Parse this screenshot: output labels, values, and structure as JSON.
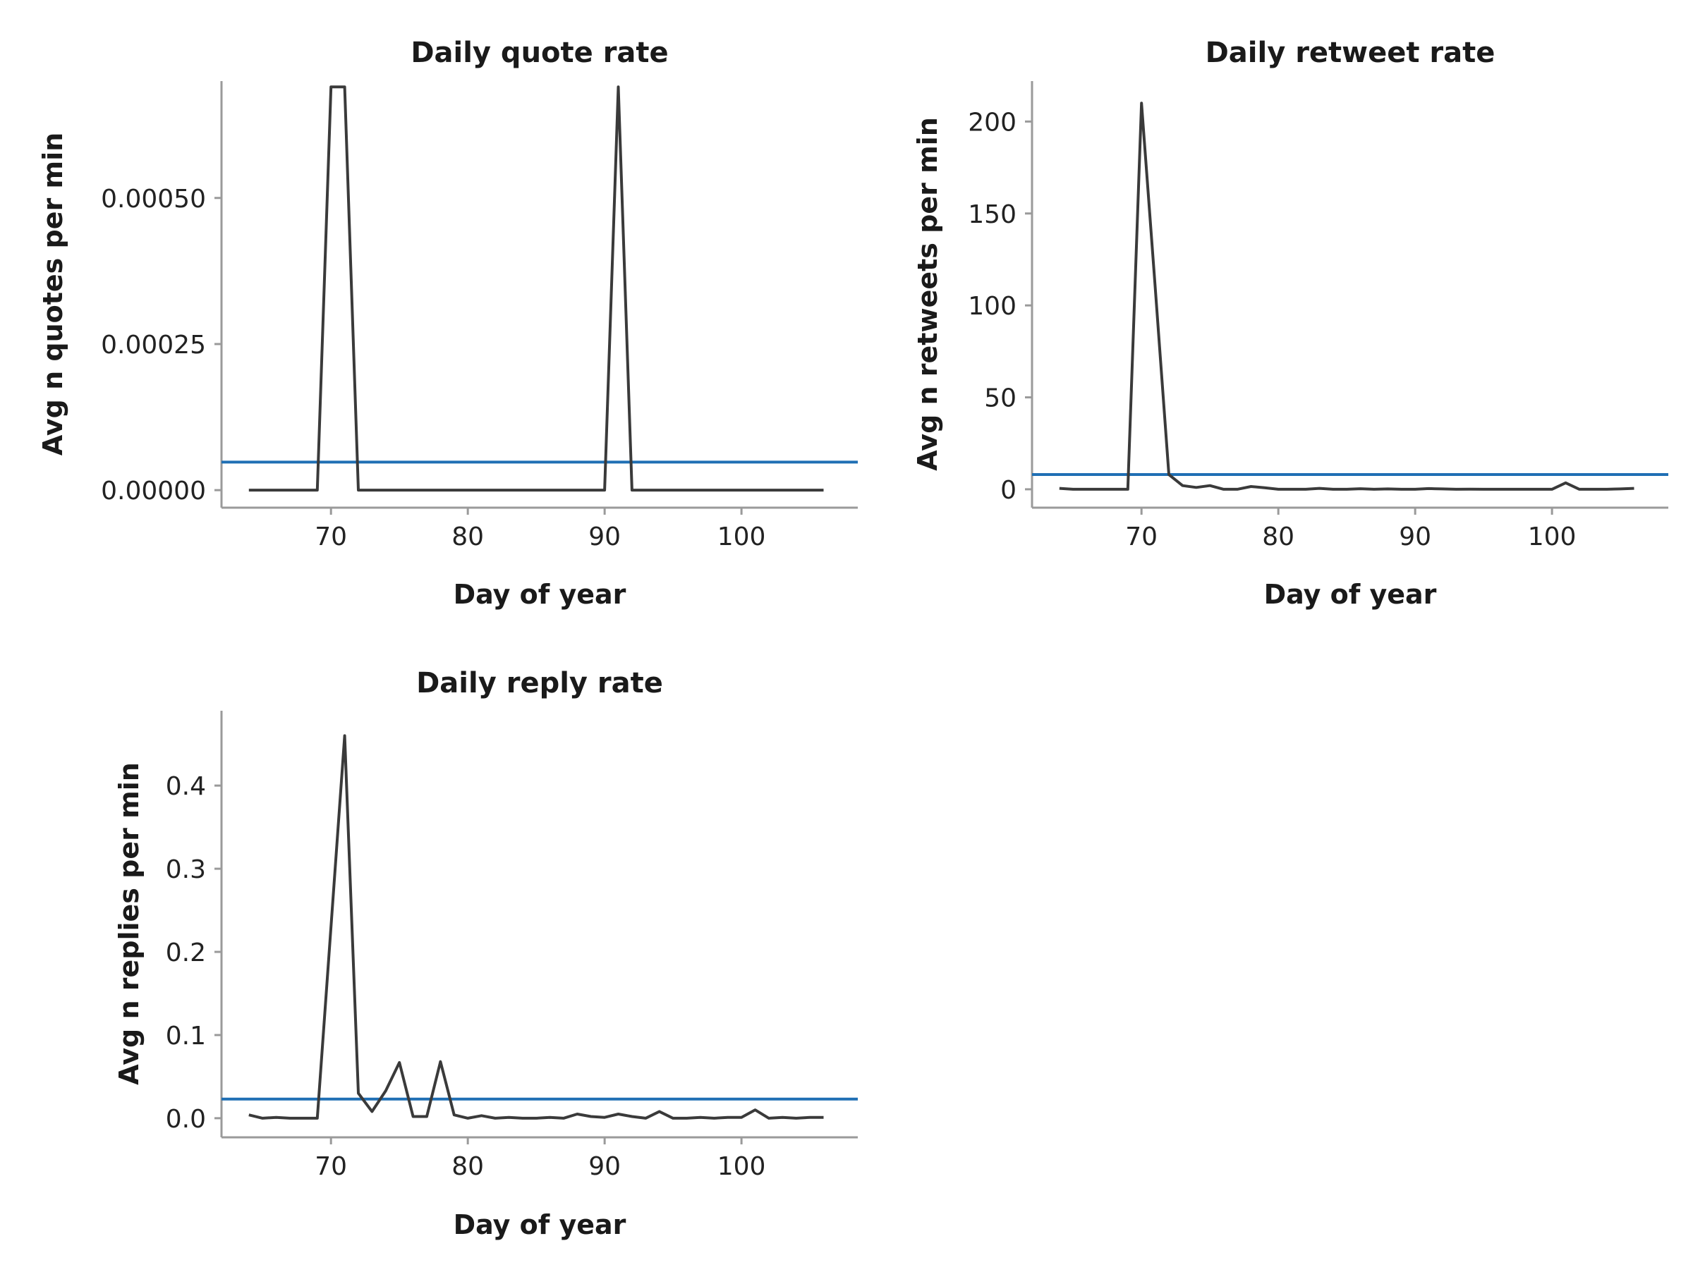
{
  "colors": {
    "series_line": "#3a3a3a",
    "reference_line": "#1f6fb4",
    "axis": "#9a9a9a"
  },
  "chart_data": [
    {
      "id": "quote",
      "type": "line",
      "title": "Daily quote rate",
      "xlabel": "Day of year",
      "ylabel": "Avg n quotes per min",
      "xlim": [
        62,
        108.5
      ],
      "ylim": [
        -3e-05,
        0.0007
      ],
      "xticks": [
        70,
        80,
        90,
        100
      ],
      "yticks": [
        0,
        0.00025,
        0.0005
      ],
      "ytick_labels": [
        "0.00000",
        "0.00025",
        "0.00050"
      ],
      "xtick_labels": [
        "70",
        "80",
        "90",
        "100"
      ],
      "reference_line": 4.8e-05,
      "x": [
        64,
        65,
        66,
        67,
        68,
        69,
        70,
        71,
        72,
        73,
        74,
        75,
        76,
        77,
        78,
        79,
        80,
        81,
        82,
        83,
        84,
        85,
        86,
        87,
        88,
        89,
        90,
        91,
        92,
        93,
        94,
        95,
        96,
        97,
        98,
        99,
        100,
        101,
        102,
        103,
        104,
        105,
        106
      ],
      "y": [
        0,
        0,
        0,
        0,
        0,
        0,
        0.00069,
        0.00069,
        0,
        0,
        0,
        0,
        0,
        0,
        0,
        0,
        0,
        0,
        0,
        0,
        0,
        0,
        0,
        0,
        0,
        0,
        0,
        0.00069,
        0,
        0,
        0,
        0,
        0,
        0,
        0,
        0,
        0,
        0,
        0,
        0,
        0,
        0,
        0
      ]
    },
    {
      "id": "retweet",
      "type": "line",
      "title": "Daily retweet rate",
      "xlabel": "Day of year",
      "ylabel": "Avg n retweets per min",
      "xlim": [
        62,
        108.5
      ],
      "ylim": [
        -10,
        222
      ],
      "xticks": [
        70,
        80,
        90,
        100
      ],
      "yticks": [
        0,
        50,
        100,
        150,
        200
      ],
      "ytick_labels": [
        "0",
        "50",
        "100",
        "150",
        "200"
      ],
      "xtick_labels": [
        "70",
        "80",
        "90",
        "100"
      ],
      "reference_line": 8,
      "x": [
        64,
        65,
        66,
        67,
        68,
        69,
        70,
        71,
        72,
        73,
        74,
        75,
        76,
        77,
        78,
        79,
        80,
        81,
        82,
        83,
        84,
        85,
        86,
        87,
        88,
        89,
        90,
        91,
        92,
        93,
        94,
        95,
        96,
        97,
        98,
        99,
        100,
        101,
        102,
        103,
        104,
        105,
        106
      ],
      "y": [
        0.5,
        0,
        0,
        0,
        0,
        0,
        210,
        110,
        8,
        2,
        1,
        2,
        0,
        0,
        1.5,
        0.8,
        0,
        0,
        0,
        0.5,
        0,
        0,
        0.3,
        0,
        0.2,
        0,
        0,
        0.4,
        0.2,
        0,
        0.1,
        0,
        0,
        0,
        0,
        0,
        0,
        3.5,
        0,
        0,
        0,
        0.2,
        0.5
      ]
    },
    {
      "id": "reply",
      "type": "line",
      "title": "Daily reply rate",
      "xlabel": "Day of year",
      "ylabel": "Avg n replies per min",
      "xlim": [
        62,
        108.5
      ],
      "ylim": [
        -0.023,
        0.49
      ],
      "xticks": [
        70,
        80,
        90,
        100
      ],
      "yticks": [
        0,
        0.1,
        0.2,
        0.3,
        0.4
      ],
      "ytick_labels": [
        "0.0",
        "0.1",
        "0.2",
        "0.3",
        "0.4"
      ],
      "xtick_labels": [
        "70",
        "80",
        "90",
        "100"
      ],
      "reference_line": 0.023,
      "x": [
        64,
        65,
        66,
        67,
        68,
        69,
        70,
        71,
        72,
        73,
        74,
        75,
        76,
        77,
        78,
        79,
        80,
        81,
        82,
        83,
        84,
        85,
        86,
        87,
        88,
        89,
        90,
        91,
        92,
        93,
        94,
        95,
        96,
        97,
        98,
        99,
        100,
        101,
        102,
        103,
        104,
        105,
        106
      ],
      "y": [
        0.004,
        0,
        0.001,
        0,
        0,
        0,
        0.23,
        0.46,
        0.03,
        0.008,
        0.033,
        0.067,
        0.002,
        0.002,
        0.068,
        0.004,
        0,
        0.003,
        0,
        0.001,
        0,
        0,
        0.001,
        0,
        0.005,
        0.002,
        0.001,
        0.005,
        0.002,
        0,
        0.008,
        0,
        0,
        0.001,
        0,
        0.001,
        0.001,
        0.01,
        0,
        0.001,
        0,
        0.001,
        0.001
      ]
    }
  ]
}
